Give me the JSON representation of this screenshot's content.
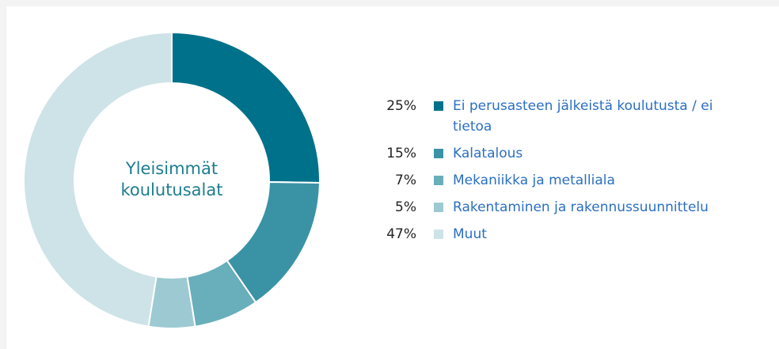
{
  "chart_data": {
    "type": "donut",
    "title": "Yleisimmät koulutusalat",
    "categories": [
      "Ei perusasteen jälkeistä koulutusta / ei tietoa",
      "Kalatalous",
      "Mekaniikka ja metalliala",
      "Rakentaminen ja rakennussuunnittelu",
      "Muut"
    ],
    "values": [
      25,
      15,
      7,
      5,
      47
    ],
    "value_labels": [
      "25%",
      "15%",
      "7%",
      "5%",
      "47%"
    ],
    "colors": [
      "#00718a",
      "#3a93a5",
      "#69aebb",
      "#9dcad2",
      "#cee3e8"
    ]
  }
}
